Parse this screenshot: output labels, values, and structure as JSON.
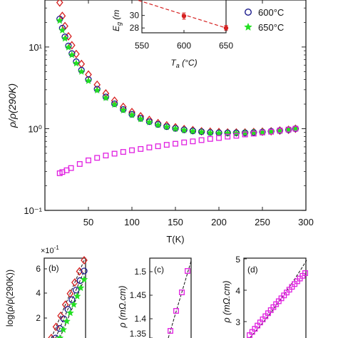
{
  "chart_data": [
    {
      "panel": "main",
      "type": "scatter",
      "ylog": true,
      "xlabel": "T(K)",
      "ylabel": "ρ/ρ(290K)",
      "xlim": [
        0,
        300
      ],
      "ylim": [
        0.1,
        40
      ],
      "xticks": [
        "50",
        "100",
        "150",
        "200",
        "250",
        "300"
      ],
      "yticks": [
        "10⁻¹",
        "10⁰",
        "10¹"
      ],
      "series": [
        {
          "marker": "diamond",
          "color": "#d62020",
          "name": "",
          "x": [
            17,
            20,
            23,
            27,
            31,
            36,
            42,
            50,
            60,
            70,
            80,
            90,
            100,
            110,
            120,
            130,
            140,
            150,
            160,
            170,
            180,
            190,
            200,
            210,
            220,
            230,
            240,
            250,
            260,
            270,
            280,
            288
          ],
          "y": [
            35,
            24,
            18,
            13.5,
            10.5,
            8.2,
            6.2,
            4.6,
            3.45,
            2.7,
            2.2,
            1.85,
            1.6,
            1.42,
            1.28,
            1.17,
            1.1,
            1.04,
            0.99,
            0.96,
            0.93,
            0.92,
            0.91,
            0.9,
            0.9,
            0.9,
            0.91,
            0.92,
            0.93,
            0.95,
            0.97,
            1.0
          ]
        },
        {
          "marker": "circle",
          "color": "#1a1a8c",
          "name": "600°C",
          "x": [
            17,
            20,
            23,
            27,
            31,
            36,
            42,
            50,
            60,
            70,
            80,
            90,
            100,
            110,
            120,
            130,
            140,
            150,
            160,
            170,
            180,
            190,
            200,
            210,
            220,
            230,
            240,
            250,
            260,
            270,
            280,
            288
          ],
          "y": [
            22,
            17,
            13.3,
            10.3,
            8.3,
            6.6,
            5.2,
            4.0,
            3.05,
            2.45,
            2.02,
            1.72,
            1.5,
            1.34,
            1.22,
            1.13,
            1.06,
            1.01,
            0.97,
            0.94,
            0.92,
            0.9,
            0.89,
            0.89,
            0.89,
            0.89,
            0.9,
            0.91,
            0.93,
            0.95,
            0.97,
            1.0
          ]
        },
        {
          "marker": "star",
          "color": "#22e022",
          "name": "650°C",
          "x": [
            17,
            20,
            23,
            27,
            31,
            36,
            42,
            50,
            60,
            70,
            80,
            90,
            100,
            110,
            120,
            130,
            140,
            150,
            160,
            170,
            180,
            190,
            200,
            210,
            220,
            230,
            240,
            250,
            260,
            270,
            280,
            288
          ],
          "y": [
            21,
            16,
            12.7,
            9.9,
            8.0,
            6.3,
            5.0,
            3.85,
            2.95,
            2.38,
            1.97,
            1.68,
            1.47,
            1.31,
            1.2,
            1.11,
            1.05,
            1.0,
            0.96,
            0.93,
            0.91,
            0.89,
            0.88,
            0.88,
            0.88,
            0.89,
            0.9,
            0.91,
            0.92,
            0.94,
            0.97,
            1.0
          ]
        },
        {
          "marker": "square",
          "color": "#e020e0",
          "name": "",
          "x": [
            17,
            20,
            25,
            30,
            40,
            50,
            60,
            70,
            80,
            90,
            100,
            110,
            120,
            130,
            140,
            150,
            160,
            170,
            180,
            190,
            200,
            210,
            220,
            230,
            240,
            250,
            260,
            270,
            280,
            288
          ],
          "y": [
            0.285,
            0.295,
            0.31,
            0.33,
            0.37,
            0.41,
            0.44,
            0.47,
            0.495,
            0.52,
            0.545,
            0.565,
            0.59,
            0.61,
            0.635,
            0.655,
            0.68,
            0.7,
            0.725,
            0.75,
            0.77,
            0.8,
            0.82,
            0.85,
            0.87,
            0.9,
            0.92,
            0.95,
            0.975,
            1.0
          ]
        }
      ]
    },
    {
      "panel": "inset",
      "type": "scatter",
      "xlabel_var": "T",
      "xlabel_sub": "a",
      "xlabel_unit": " (°C)",
      "ylabel_var": "E",
      "ylabel_sub": "g",
      "ylabel_unit": " (m",
      "xlim": [
        550,
        650
      ],
      "ylim": [
        27,
        32.5
      ],
      "xticks": [
        "550",
        "600",
        "650"
      ],
      "yticks": [
        "28",
        "30"
      ],
      "points": [
        {
          "x": 600,
          "y": 29.9,
          "err": 0.5
        },
        {
          "x": 650,
          "y": 28.0,
          "err": 0.4
        }
      ],
      "fit_line": [
        [
          520,
          33.5
        ],
        [
          650,
          28.0
        ]
      ],
      "color": "#d62020"
    },
    {
      "panel": "b",
      "label": "(b)",
      "exponent_label": "×10",
      "exponent_power": "-1",
      "ylabel": "log(ρ/ρ(290K))",
      "yticks": [
        "6",
        "4",
        "2"
      ]
    },
    {
      "panel": "c",
      "label": "(c)",
      "ylabel": "ρ (mΩ.cm)",
      "yticks": [
        "1.5",
        "1.45",
        "1.4",
        "1.35"
      ]
    },
    {
      "panel": "d",
      "label": "(d)",
      "ylabel": "ρ (mΩ.cm)",
      "yticks": [
        "5",
        "4",
        "3"
      ]
    }
  ]
}
